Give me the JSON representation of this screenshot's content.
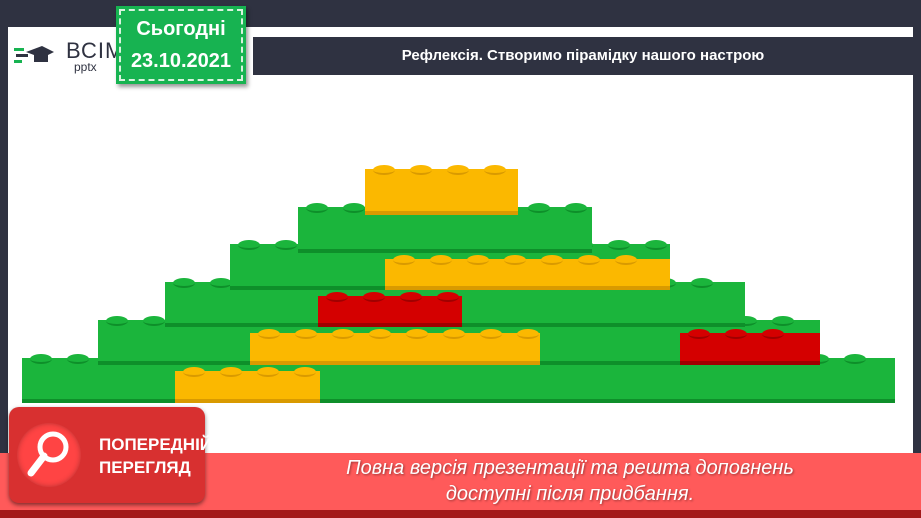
{
  "logo": {
    "line1": "ВСІМ",
    "line2": "pptx"
  },
  "date": {
    "label": "Сьогодні",
    "value": "23.10.2021"
  },
  "title": "Рефлексія. Створимо пірамідку нашого настрою",
  "colors": {
    "green": "#1bb53c",
    "orange": "#fbb800",
    "red": "#d40000",
    "dark": "#2f3241",
    "banner": "#ff5a5a"
  },
  "badge": {
    "line1": "ПОПЕРЕДНІЙ",
    "line2": "ПЕРЕГЛЯД",
    "icon": "magnifier-icon"
  },
  "banner": {
    "line1": "Повна версія презентації та решта доповнень",
    "line2": "доступні після придбання."
  }
}
